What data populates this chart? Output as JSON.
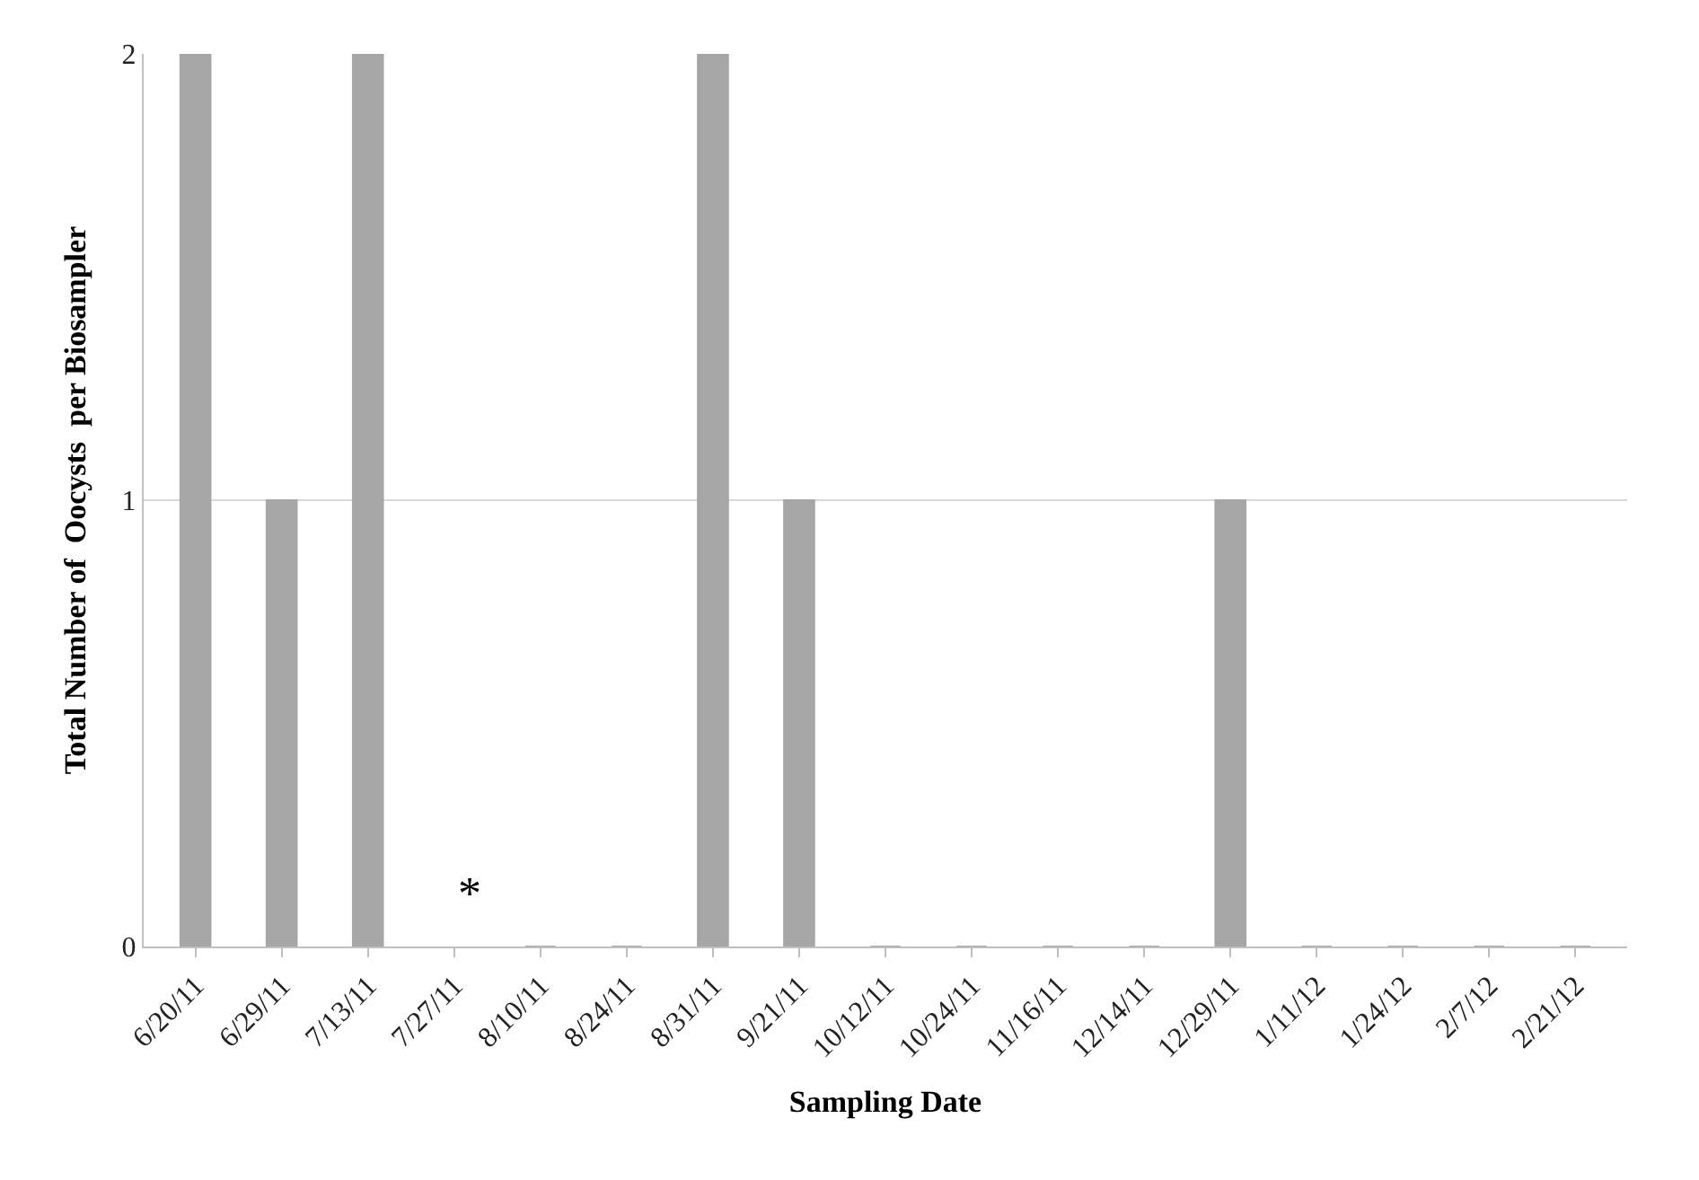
{
  "chart_data": {
    "type": "bar",
    "xlabel": "Sampling Date",
    "ylabel": "Total Number of  Oocysts  per Biosampler",
    "categories": [
      "6/20/11",
      "6/29/11",
      "7/13/11",
      "7/27/11",
      "8/10/11",
      "8/24/11",
      "8/31/11",
      "9/21/11",
      "10/12/11",
      "10/24/11",
      "11/16/11",
      "12/14/11",
      "12/29/11",
      "1/11/12",
      "1/24/12",
      "2/7/12",
      "2/21/12"
    ],
    "values": [
      2,
      1,
      2,
      null,
      0,
      0,
      2,
      1,
      0,
      0,
      0,
      0,
      1,
      0,
      0,
      0,
      0
    ],
    "color": "#a6a6a6",
    "ylim": [
      0,
      2
    ],
    "yticks": [
      0,
      1,
      2
    ],
    "grid": "y",
    "annotations": [
      "*"
    ]
  }
}
